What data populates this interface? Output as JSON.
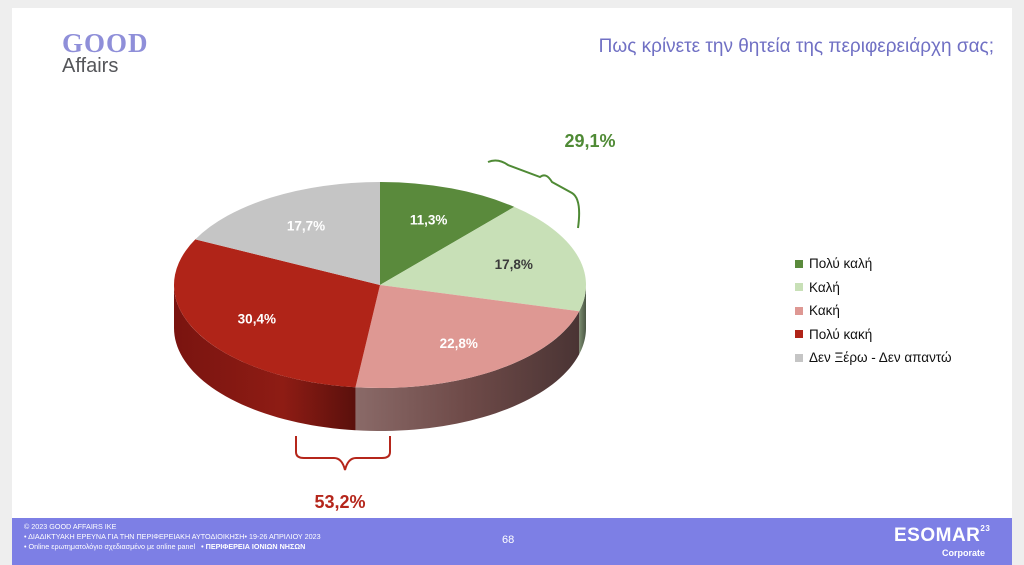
{
  "logo": {
    "line1": "GOOD",
    "line2": "Affairs"
  },
  "title": "Πως κρίνετε την θητεία της περιφερειάρχη σας;",
  "chart_data": {
    "type": "pie",
    "title": "Πως κρίνετε την θητεία της περιφερειάρχη σας;",
    "categories": [
      "Πολύ καλή",
      "Καλή",
      "Κακή",
      "Πολύ κακή",
      "Δεν Ξέρω - Δεν απαντώ"
    ],
    "values": [
      11.3,
      17.8,
      22.8,
      30.4,
      17.7
    ],
    "labels": [
      "11,3%",
      "17,8%",
      "22,8%",
      "30,4%",
      "17,7%"
    ],
    "colors": [
      "#5a8a3c",
      "#c8e0b7",
      "#de9893",
      "#b02418",
      "#c5c5c5"
    ],
    "legend_position": "right",
    "annotations": [
      {
        "text": "29,1%",
        "groups": [
          "Πολύ καλή",
          "Καλή"
        ],
        "color": "#4f8a35"
      },
      {
        "text": "53,2%",
        "groups": [
          "Κακή",
          "Πολύ κακή"
        ],
        "color": "#b5261b"
      }
    ]
  },
  "footer": {
    "line1": "© 2023 GOOD AFFAIRS IKE",
    "line2": "• ΔΙΑΔΙΚΤΥΑΚΗ ΕΡΕΥΝΑ ΓΙΑ ΤΗΝ ΠΕΡΙΦΕΡΕΙΑΚΗ ΑΥΤΟΔΙΟΙΚΗΣΗ• 19-26 ΑΠΡΙΛΙΟΥ 2023",
    "line3": "• Online ερωτηματολόγιο σχεδιασμένο με online panel",
    "region": "• ΠΕΡΙΦΕΡΕΙΑ ΙΟΝΙΩΝ ΝΗΣΩΝ",
    "page_number": "68",
    "esomar": "ESOMAR",
    "esomar_sup": "23",
    "corporate": "Corporate"
  }
}
